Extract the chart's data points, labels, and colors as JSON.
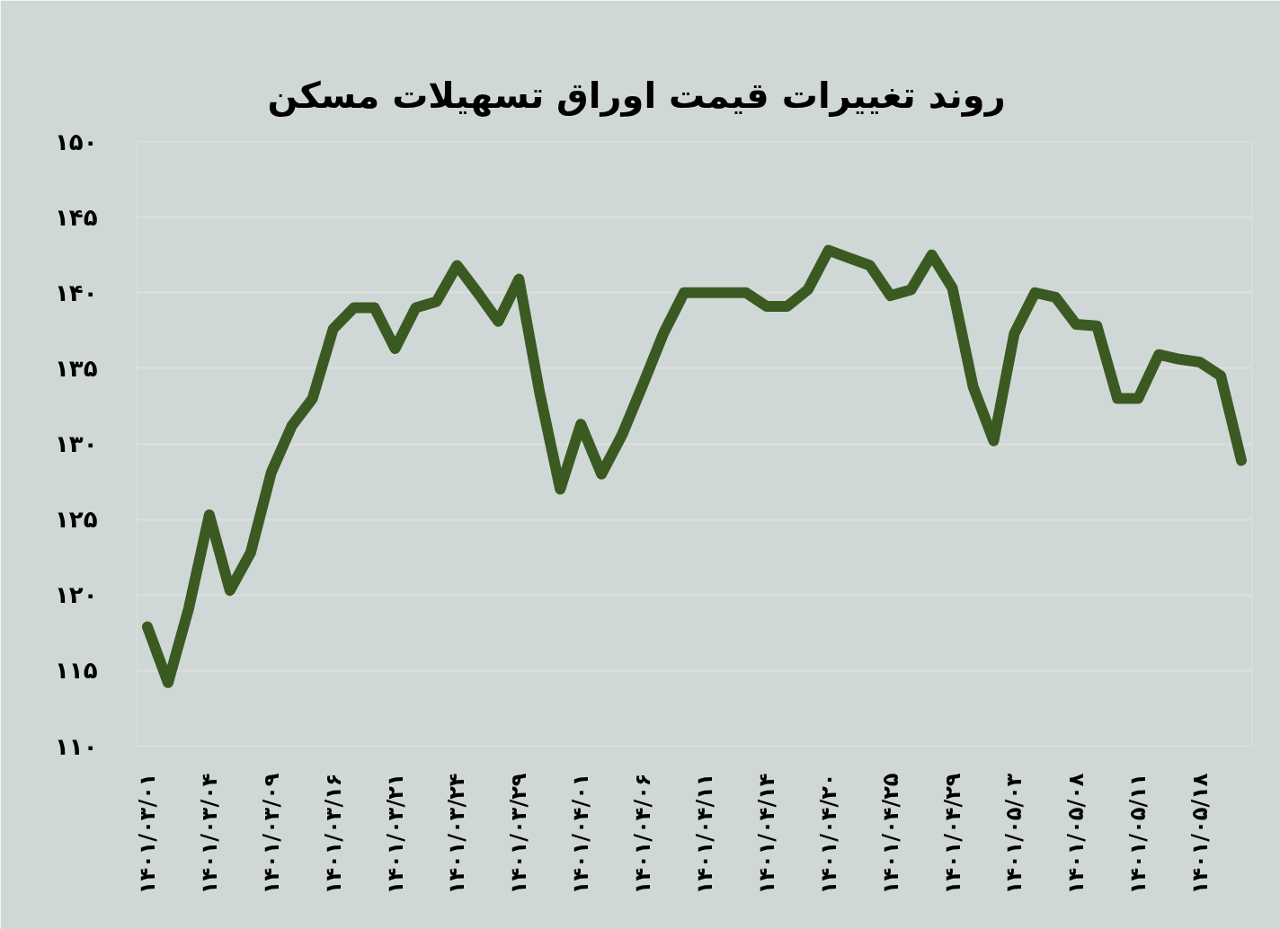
{
  "chart_data": {
    "type": "line",
    "title": "روند تغییرات قیمت اوراق تسهیلات مسکن",
    "categories": [
      "۱۴۰۱/۰۳/۰۱",
      null,
      null,
      "۱۴۰۱/۰۳/۰۴",
      null,
      null,
      "۱۴۰۱/۰۳/۰۹",
      null,
      null,
      "۱۴۰۱/۰۳/۱۶",
      null,
      null,
      "۱۴۰۱/۰۳/۲۱",
      null,
      null,
      "۱۴۰۱/۰۳/۲۴",
      null,
      null,
      "۱۴۰۱/۰۳/۲۹",
      null,
      null,
      "۱۴۰۱/۰۴/۰۱",
      null,
      null,
      "۱۴۰۱/۰۴/۰۶",
      null,
      null,
      "۱۴۰۱/۰۴/۱۱",
      null,
      null,
      "۱۴۰۱/۰۴/۱۴",
      null,
      null,
      "۱۴۰۱/۰۴/۲۰",
      null,
      null,
      "۱۴۰۱/۰۴/۲۵",
      null,
      null,
      "۱۴۰۱/۰۴/۲۹",
      null,
      null,
      "۱۴۰۱/۰۵/۰۳",
      null,
      null,
      "۱۴۰۱/۰۵/۰۸",
      null,
      null,
      "۱۴۰۱/۰۵/۱۱",
      null,
      null,
      "۱۴۰۱/۰۵/۱۸",
      null,
      null
    ],
    "series": [
      {
        "color": "#3a5a22",
        "values": [
          117.9,
          114.2,
          119.1,
          125.3,
          120.3,
          122.8,
          128.1,
          131.2,
          133.0,
          137.6,
          139.0,
          139.0,
          136.3,
          139.0,
          139.4,
          141.8,
          140.0,
          138.1,
          140.9,
          133.4,
          127.0,
          131.3,
          128.0,
          130.6,
          133.9,
          137.3,
          140.0,
          140.0,
          140.0,
          140.0,
          139.1,
          139.1,
          140.2,
          142.8,
          142.3,
          141.8,
          139.8,
          140.2,
          142.5,
          140.3,
          133.8,
          130.2,
          137.3,
          140.0,
          139.7,
          137.9,
          137.8,
          133.0,
          133.0,
          135.9,
          135.6,
          135.4,
          134.5,
          128.9
        ]
      }
    ],
    "ylim": [
      110,
      150
    ],
    "yticks": [
      {
        "value": 110,
        "label": "۱۱۰"
      },
      {
        "value": 115,
        "label": "۱۱۵"
      },
      {
        "value": 120,
        "label": "۱۲۰"
      },
      {
        "value": 125,
        "label": "۱۲۵"
      },
      {
        "value": 130,
        "label": "۱۳۰"
      },
      {
        "value": 135,
        "label": "۱۳۵"
      },
      {
        "value": 140,
        "label": "۱۴۰"
      },
      {
        "value": 145,
        "label": "۱۴۵"
      },
      {
        "value": 150,
        "label": "۱۵۰"
      }
    ],
    "grid": "y",
    "line_style": "solid"
  }
}
